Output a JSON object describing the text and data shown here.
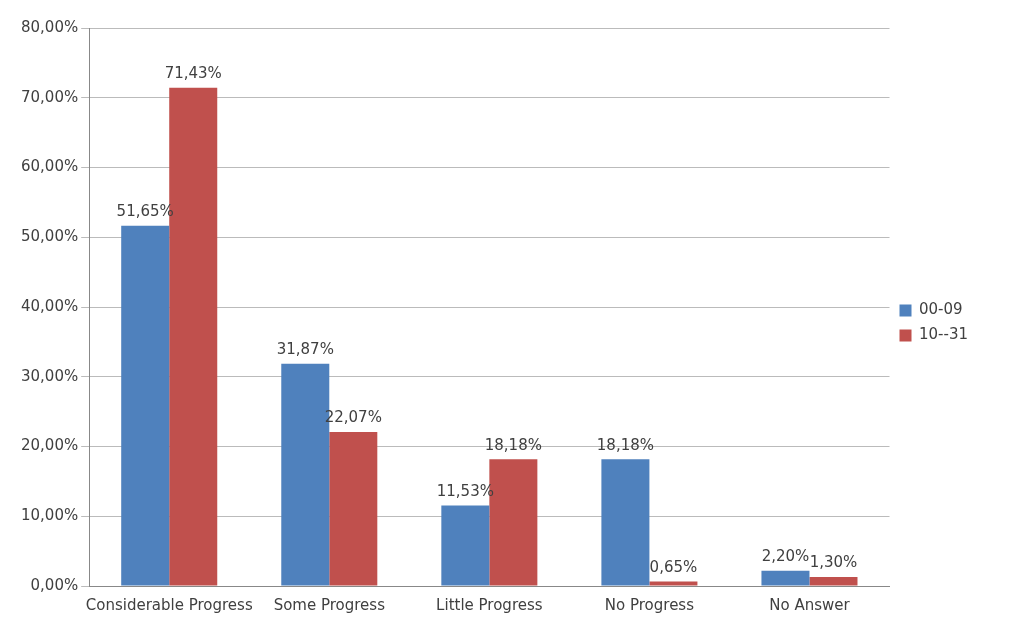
{
  "chart_data": {
    "type": "bar",
    "categories": [
      "Considerable Progress",
      "Some Progress",
      "Little Progress",
      "No Progress",
      "No Answer"
    ],
    "series": [
      {
        "name": "00-09",
        "color": "#4f81bd",
        "values": [
          51.65,
          31.87,
          11.53,
          18.18,
          2.2
        ],
        "value_labels": [
          "51,65%",
          "31,87%",
          "11,53%",
          "18,18%",
          "2,20%"
        ]
      },
      {
        "name": "10--31",
        "color": "#c0504d",
        "values": [
          71.43,
          22.07,
          18.18,
          0.65,
          1.3
        ],
        "value_labels": [
          "71,43%",
          "22,07%",
          "18,18%",
          "0,65%",
          "1,30%"
        ]
      }
    ],
    "ylim": [
      0,
      80
    ],
    "yticks": [
      {
        "value": 0,
        "label": "0,00%"
      },
      {
        "value": 10,
        "label": "10,00%"
      },
      {
        "value": 20,
        "label": "20,00%"
      },
      {
        "value": 30,
        "label": "30,00%"
      },
      {
        "value": 40,
        "label": "40,00%"
      },
      {
        "value": 50,
        "label": "50,00%"
      },
      {
        "value": 60,
        "label": "60,00%"
      },
      {
        "value": 70,
        "label": "70,00%"
      },
      {
        "value": 80,
        "label": "80,00%"
      }
    ],
    "grid": "y",
    "legend": "right"
  }
}
